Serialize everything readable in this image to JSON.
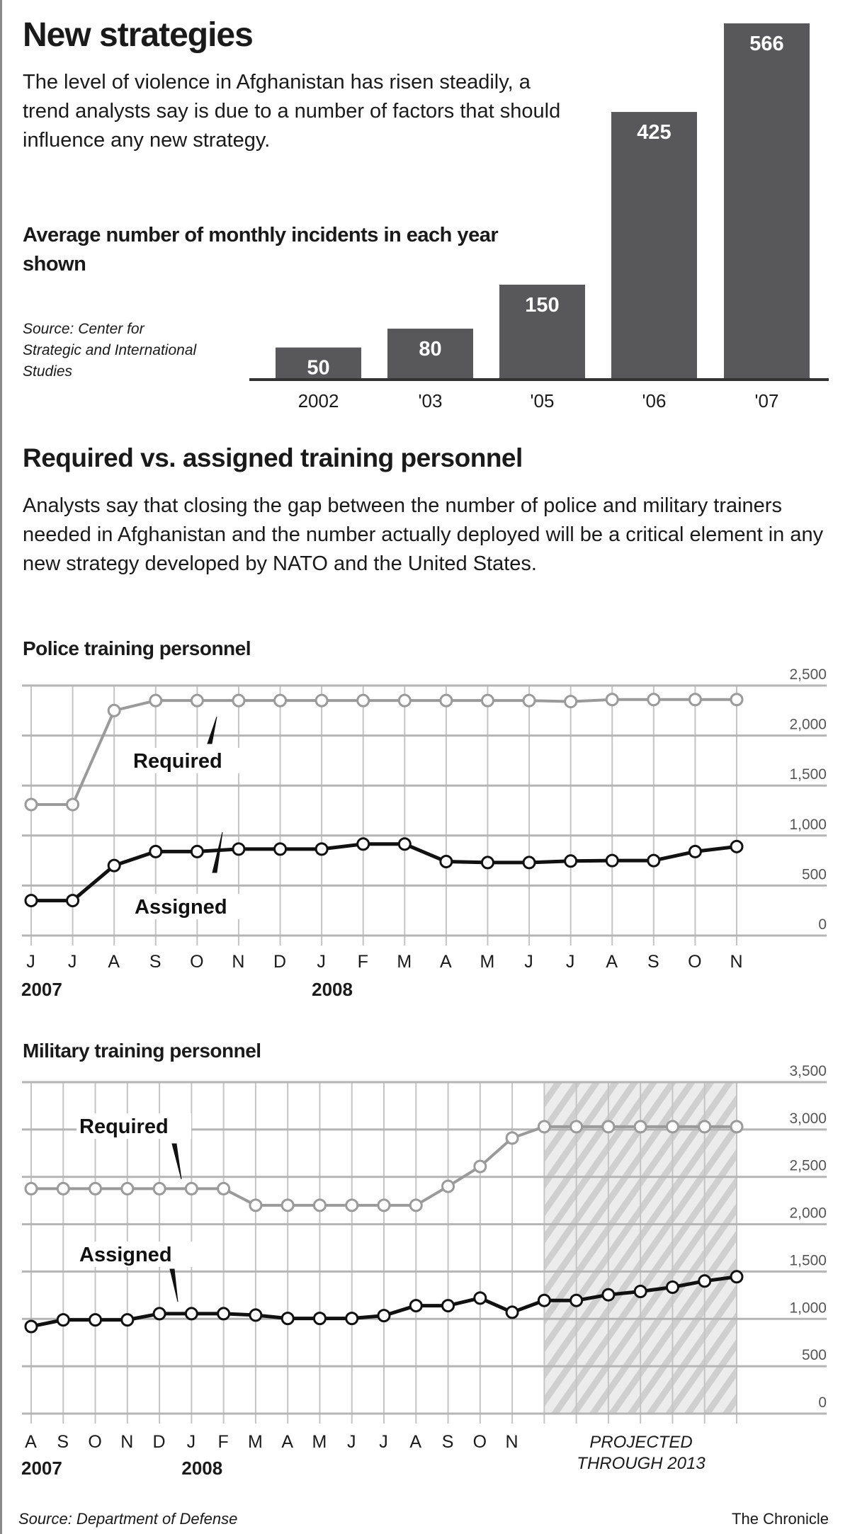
{
  "section1": {
    "title": "New strategies",
    "intro": "The level of violence in Afghanistan has risen steadily, a trend analysts say is due to a number of factors that should influence any new strategy.",
    "subtitle": "Average number of monthly  incidents in each year shown",
    "source": "Source: Center for Strategic and International Studies"
  },
  "section2": {
    "title": "Required vs. assigned training personnel",
    "intro": "Analysts say that closing the gap between the number of police and military trainers needed in Afghanistan and the number actually deployed will be a critical element in any new strategy developed by NATO and the United States."
  },
  "footer": {
    "source": "Source: Department of Defense",
    "credit": "The Chronicle"
  },
  "colors": {
    "bar": "#58585a",
    "required": "#9a9a9a",
    "assigned": "#111111",
    "grid": "#b5b5b5",
    "hatch": "#cfcfcf"
  },
  "chart_data": [
    {
      "type": "bar",
      "title": "Average number of monthly  incidents in each year shown",
      "categories": [
        "2002",
        "'03",
        "'05",
        "'06",
        "'07"
      ],
      "values": [
        50,
        80,
        150,
        425,
        566
      ],
      "value_labels": [
        "50",
        "80",
        "150",
        "425",
        "566"
      ],
      "ylim": [
        0,
        566
      ]
    },
    {
      "type": "line",
      "title": "Police training personnel",
      "x": [
        "J",
        "J",
        "A",
        "S",
        "O",
        "N",
        "D",
        "J",
        "F",
        "M",
        "A",
        "M",
        "J",
        "J",
        "A",
        "S",
        "O",
        "N"
      ],
      "year_labels": [
        {
          "index": 0,
          "text": "2007"
        },
        {
          "index": 7,
          "text": "2008"
        }
      ],
      "ylim": [
        0,
        2500
      ],
      "yticks": [
        0,
        500,
        1000,
        1500,
        2000,
        2500
      ],
      "ytick_labels": [
        "0",
        "500",
        "1,000",
        "1,500",
        "2,000",
        "2,500"
      ],
      "grid": true,
      "series": [
        {
          "name": "Required",
          "values": [
            1310,
            1310,
            2250,
            2350,
            2350,
            2350,
            2350,
            2350,
            2350,
            2350,
            2350,
            2350,
            2350,
            2340,
            2360,
            2360,
            2360,
            2360
          ]
        },
        {
          "name": "Assigned",
          "values": [
            350,
            350,
            700,
            840,
            840,
            865,
            865,
            865,
            915,
            915,
            740,
            730,
            730,
            745,
            750,
            750,
            840,
            890
          ]
        }
      ]
    },
    {
      "type": "line",
      "title": "Military training personnel",
      "x": [
        "A",
        "S",
        "O",
        "N",
        "D",
        "J",
        "F",
        "M",
        "A",
        "M",
        "J",
        "J",
        "A",
        "S",
        "O",
        "N",
        "",
        "",
        "",
        "",
        "",
        "",
        ""
      ],
      "year_labels": [
        {
          "index": 0,
          "text": "2007"
        },
        {
          "index": 5,
          "text": "2008"
        }
      ],
      "ylim": [
        0,
        3500
      ],
      "yticks": [
        0,
        500,
        1000,
        1500,
        2000,
        2500,
        3000,
        3500
      ],
      "ytick_labels": [
        "0",
        "500",
        "1,000",
        "1,500",
        "2,000",
        "2,500",
        "3,000",
        "3,500"
      ],
      "grid": true,
      "projected_from_index": 16,
      "projected_label": [
        "PROJECTED",
        "THROUGH 2013"
      ],
      "series": [
        {
          "name": "Required",
          "values": [
            2375,
            2375,
            2375,
            2375,
            2375,
            2375,
            2375,
            2200,
            2200,
            2200,
            2200,
            2200,
            2200,
            2400,
            2610,
            2910,
            3030,
            3030,
            3030,
            3030,
            3030,
            3030,
            3030
          ]
        },
        {
          "name": "Assigned",
          "values": [
            920,
            990,
            990,
            990,
            1055,
            1055,
            1055,
            1040,
            1005,
            1005,
            1005,
            1035,
            1140,
            1140,
            1220,
            1070,
            1195,
            1195,
            1255,
            1290,
            1335,
            1400,
            1445
          ]
        }
      ]
    }
  ]
}
